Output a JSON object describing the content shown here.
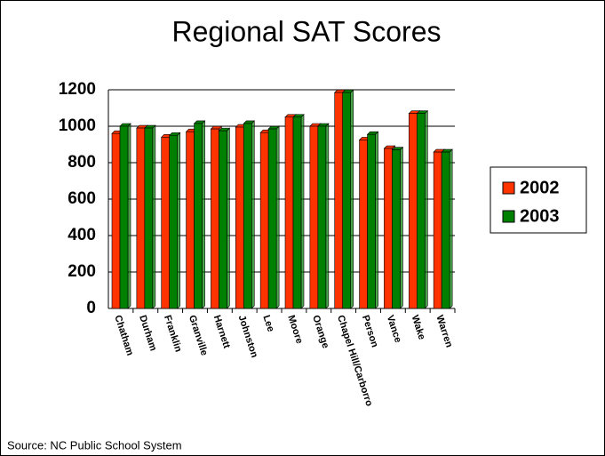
{
  "chart_data": {
    "type": "bar",
    "title": "Regional SAT Scores",
    "categories": [
      "Chatham",
      "Durham",
      "Franklin",
      "Granville",
      "Harnett",
      "Johnston",
      "Lee",
      "Moore",
      "Orange",
      "Chapel Hill/Carborro",
      "Person",
      "Vance",
      "Wake",
      "Warren"
    ],
    "series": [
      {
        "name": "2002",
        "color": "#ff3300",
        "values": [
          960,
          990,
          940,
          970,
          985,
          995,
          965,
          1050,
          1000,
          1185,
          925,
          878,
          1070,
          858
        ]
      },
      {
        "name": "2003",
        "color": "#008000",
        "values": [
          1000,
          990,
          950,
          1015,
          975,
          1015,
          985,
          1050,
          1000,
          1185,
          955,
          870,
          1070,
          858
        ]
      }
    ],
    "ylim": [
      0,
      1200
    ],
    "yticks": [
      0,
      200,
      400,
      600,
      800,
      1000,
      1200
    ],
    "grid": true,
    "legend": "right",
    "source": "Source: NC Public School System"
  }
}
